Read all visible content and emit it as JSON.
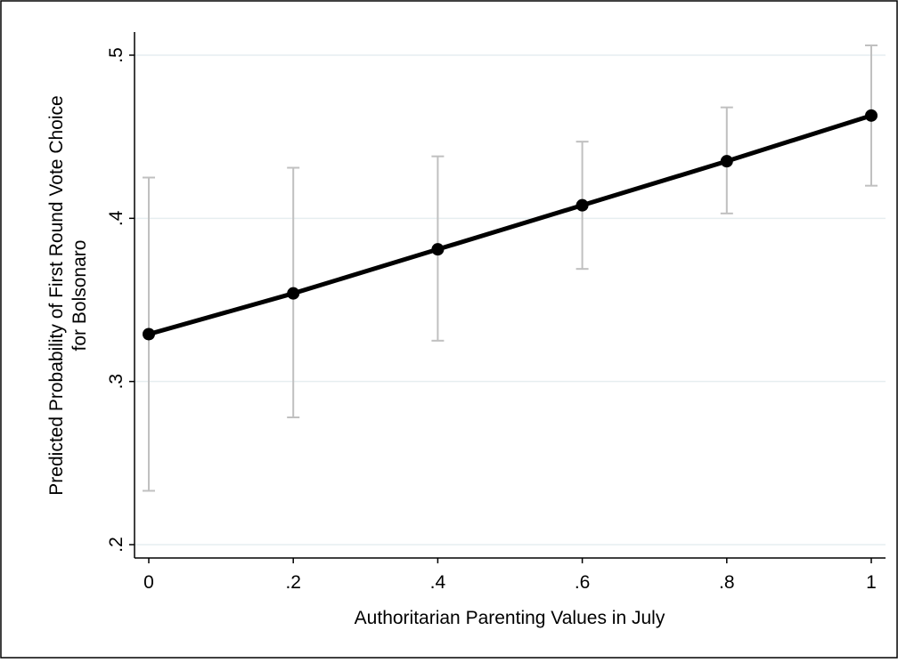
{
  "chart_data": {
    "type": "line",
    "title": "",
    "xlabel": "Authoritarian Parenting Values in July",
    "ylabel_lines": [
      "Predicted Probability of First Round Vote Choice",
      "for Bolsonaro"
    ],
    "xlim": [
      0,
      1
    ],
    "ylim": [
      0.2,
      0.5
    ],
    "x_ticks": [
      {
        "value": 0,
        "label": "0"
      },
      {
        "value": 0.2,
        "label": ".2"
      },
      {
        "value": 0.4,
        "label": ".4"
      },
      {
        "value": 0.6,
        "label": ".6"
      },
      {
        "value": 0.8,
        "label": ".8"
      },
      {
        "value": 1,
        "label": "1"
      }
    ],
    "y_ticks": [
      {
        "value": 0.2,
        "label": ".2"
      },
      {
        "value": 0.3,
        "label": ".3"
      },
      {
        "value": 0.4,
        "label": ".4"
      },
      {
        "value": 0.5,
        "label": ".5"
      }
    ],
    "grid": "horizontal",
    "legend": "none",
    "series": [
      {
        "x": [
          0,
          0.2,
          0.4,
          0.6,
          0.8,
          1
        ],
        "y": [
          0.329,
          0.354,
          0.381,
          0.408,
          0.435,
          0.463
        ],
        "ci_low": [
          0.233,
          0.278,
          0.325,
          0.369,
          0.403,
          0.42
        ],
        "ci_high": [
          0.425,
          0.431,
          0.438,
          0.447,
          0.468,
          0.506
        ]
      }
    ],
    "colors": {
      "line": "#000000",
      "error_bars": "#c0c0c0",
      "grid": "#e6eef0",
      "axis": "#000000"
    }
  }
}
